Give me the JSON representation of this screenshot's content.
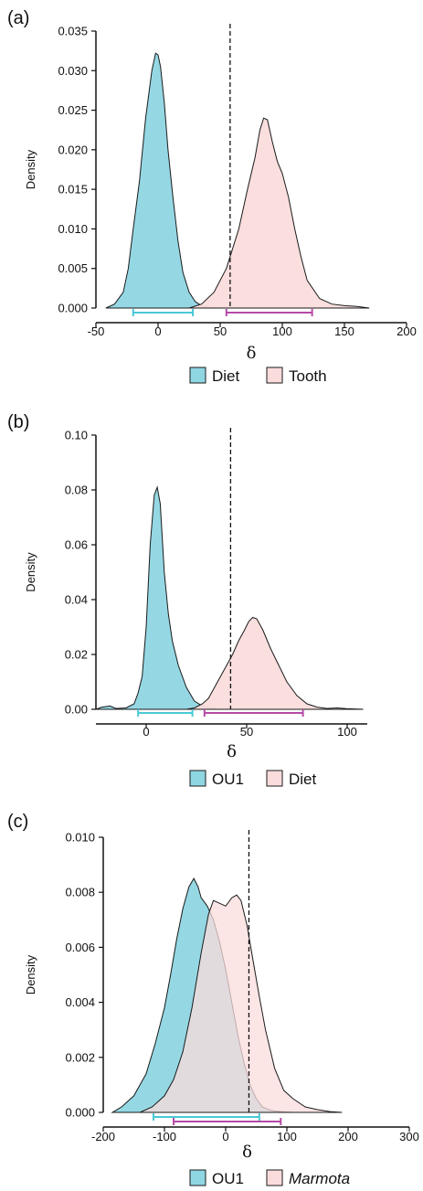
{
  "colors": {
    "blue": "#8fd6e3",
    "pink": "#fbdcdc",
    "blue_bar": "#49c9d6",
    "pink_bar": "#b54aa6",
    "overlap": "#c3e2df"
  },
  "chart_data": [
    {
      "type": "area",
      "panel_label": "(a)",
      "xlabel": "δ",
      "ylabel": "Density",
      "xlim": [
        -50,
        200
      ],
      "ylim": [
        0,
        0.035
      ],
      "xticks": [
        -50,
        0,
        50,
        100,
        150,
        200
      ],
      "xtick_labels": [
        "-50",
        "0",
        "50",
        "100",
        "150",
        "200"
      ],
      "yticks": [
        0,
        0.005,
        0.01,
        0.015,
        0.02,
        0.025,
        0.03,
        0.035
      ],
      "ytick_labels": [
        "0.000",
        "0.005",
        "0.010",
        "0.015",
        "0.020",
        "0.025",
        "0.030",
        "0.035"
      ],
      "vline": 58,
      "legend": "bottom",
      "series": [
        {
          "name": "Diet",
          "color_key": "blue",
          "x": [
            -42,
            -35,
            -28,
            -24,
            -20,
            -15,
            -10,
            -5,
            -2,
            0,
            2,
            5,
            8,
            12,
            16,
            20,
            25,
            30,
            35,
            40,
            45
          ],
          "y": [
            0.0,
            0.0005,
            0.002,
            0.005,
            0.01,
            0.016,
            0.024,
            0.03,
            0.0322,
            0.032,
            0.0305,
            0.026,
            0.02,
            0.014,
            0.0085,
            0.0045,
            0.002,
            0.0008,
            0.0003,
            0.0001,
            0.0
          ],
          "ci": [
            -20,
            28
          ]
        },
        {
          "name": "Tooth",
          "color_key": "pink",
          "x": [
            25,
            35,
            45,
            55,
            65,
            72,
            78,
            82,
            85,
            88,
            92,
            96,
            100,
            105,
            110,
            115,
            120,
            130,
            140,
            150,
            160,
            170
          ],
          "y": [
            0.0,
            0.0005,
            0.002,
            0.005,
            0.01,
            0.015,
            0.019,
            0.0225,
            0.024,
            0.0238,
            0.021,
            0.0185,
            0.017,
            0.014,
            0.01,
            0.0065,
            0.0035,
            0.0012,
            0.0005,
            0.0003,
            0.0002,
            0.0
          ],
          "ci": [
            55,
            124
          ]
        }
      ]
    },
    {
      "type": "area",
      "panel_label": "(b)",
      "xlabel": "δ",
      "ylabel": "Density",
      "xlim": [
        -25,
        110
      ],
      "ylim": [
        0,
        0.1
      ],
      "xticks": [
        0,
        50,
        100
      ],
      "xtick_labels": [
        "0",
        "50",
        "100"
      ],
      "yticks": [
        0,
        0.02,
        0.04,
        0.06,
        0.08,
        0.1
      ],
      "ytick_labels": [
        "0.00",
        "0.02",
        "0.04",
        "0.06",
        "0.08",
        "0.10"
      ],
      "vline": 42,
      "legend": "bottom",
      "series": [
        {
          "name": "OU1",
          "color_key": "blue",
          "x": [
            -25,
            -22,
            -18,
            -15,
            -10,
            -6,
            -4,
            -2,
            0,
            2,
            4,
            5.5,
            7,
            9,
            11,
            13,
            16,
            20,
            24,
            28,
            32,
            36
          ],
          "y": [
            0.0,
            0.0008,
            0.0012,
            0.0003,
            0.0005,
            0.002,
            0.006,
            0.012,
            0.03,
            0.06,
            0.078,
            0.081,
            0.075,
            0.05,
            0.035,
            0.025,
            0.016,
            0.008,
            0.003,
            0.0012,
            0.0005,
            0.0
          ],
          "ci": [
            -4,
            23
          ]
        },
        {
          "name": "Diet",
          "color_key": "pink",
          "x": [
            20,
            24,
            28,
            31,
            34,
            37,
            40,
            43,
            46,
            49,
            51,
            53,
            55,
            58,
            62,
            66,
            70,
            75,
            80,
            85,
            90,
            95,
            100,
            108
          ],
          "y": [
            0.0,
            0.0005,
            0.002,
            0.004,
            0.008,
            0.012,
            0.016,
            0.02,
            0.025,
            0.029,
            0.032,
            0.0335,
            0.033,
            0.029,
            0.022,
            0.016,
            0.01,
            0.005,
            0.002,
            0.0008,
            0.0003,
            0.0005,
            0.0002,
            0.0
          ],
          "ci": [
            29,
            78
          ]
        }
      ]
    },
    {
      "type": "area",
      "panel_label": "(c)",
      "xlabel": "δ",
      "ylabel": "Density",
      "xlim": [
        -200,
        300
      ],
      "ylim": [
        0,
        0.01
      ],
      "xticks": [
        -200,
        -100,
        0,
        100,
        200,
        300
      ],
      "xtick_labels": [
        "-200",
        "-100",
        "0",
        "100",
        "200",
        "300"
      ],
      "yticks": [
        0,
        0.002,
        0.004,
        0.006,
        0.008,
        0.01
      ],
      "ytick_labels": [
        "0.000",
        "0.002",
        "0.004",
        "0.006",
        "0.008",
        "0.010"
      ],
      "vline": 38,
      "legend": "bottom",
      "series": [
        {
          "name": "OU1",
          "color_key": "blue",
          "x": [
            -185,
            -170,
            -150,
            -130,
            -115,
            -100,
            -90,
            -80,
            -70,
            -60,
            -52,
            -45,
            -40,
            -30,
            -20,
            -10,
            0,
            10,
            20,
            30,
            40,
            50,
            60,
            70,
            80,
            95,
            110
          ],
          "y": [
            0.0,
            0.0002,
            0.0006,
            0.0014,
            0.0025,
            0.0038,
            0.005,
            0.0063,
            0.0074,
            0.0082,
            0.0085,
            0.0082,
            0.0078,
            0.0075,
            0.007,
            0.0062,
            0.0052,
            0.004,
            0.0028,
            0.0018,
            0.001,
            0.0005,
            0.0002,
            0.0001,
            5e-05,
            2e-05,
            0.0
          ],
          "ci": [
            -118,
            55
          ]
        },
        {
          "name": "Marmota",
          "label_italic": true,
          "color_key": "pink",
          "x": [
            -140,
            -120,
            -100,
            -85,
            -70,
            -55,
            -40,
            -28,
            -20,
            -10,
            0,
            10,
            18,
            25,
            35,
            45,
            55,
            65,
            80,
            95,
            110,
            130,
            150,
            170,
            190
          ],
          "y": [
            0.0,
            0.0002,
            0.0006,
            0.0012,
            0.0022,
            0.0038,
            0.0058,
            0.0072,
            0.0077,
            0.0076,
            0.0075,
            0.0078,
            0.0079,
            0.0077,
            0.0068,
            0.0055,
            0.0042,
            0.003,
            0.0016,
            0.0008,
            0.0005,
            0.0002,
            0.0001,
            3e-05,
            0.0
          ],
          "ci": [
            -85,
            90
          ]
        }
      ]
    }
  ]
}
